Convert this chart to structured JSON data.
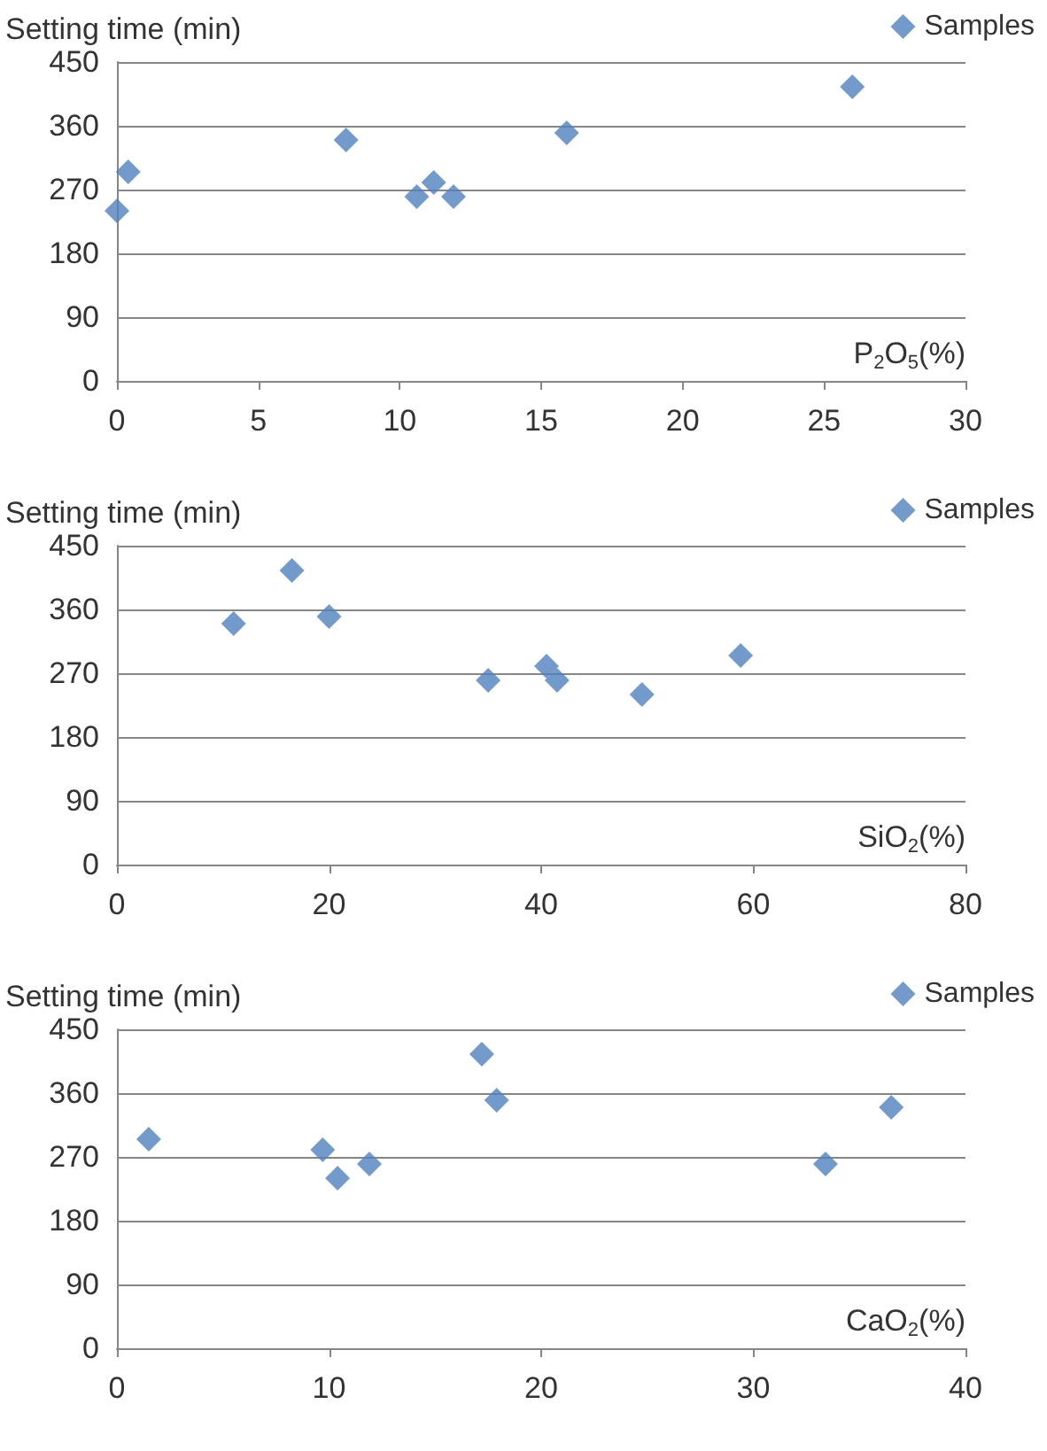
{
  "chart_data": [
    {
      "type": "scatter",
      "ylabel": "Setting time (min)",
      "xlabel": "P$_{2}$O$_{5}$(%)",
      "xlim": [
        0,
        30
      ],
      "xticks": [
        0,
        5,
        10,
        15,
        20,
        25,
        30
      ],
      "ylim": [
        0,
        450
      ],
      "yticks": [
        0,
        90,
        180,
        270,
        360,
        450
      ],
      "grid": "y",
      "legend": "top right",
      "marker": "diamond",
      "series": [
        {
          "name": "Samples",
          "color": "#4f81bd",
          "x": [
            0,
            0.4,
            8.1,
            10.6,
            11.2,
            11.9,
            15.9,
            26
          ],
          "values": [
            240,
            295,
            340,
            260,
            280,
            260,
            350,
            415
          ]
        }
      ]
    },
    {
      "type": "scatter",
      "ylabel": "Setting time (min)",
      "xlabel": "SiO$_{2}$(%)",
      "xlim": [
        0,
        80
      ],
      "xticks": [
        0,
        20,
        40,
        60,
        80
      ],
      "ylim": [
        0,
        450
      ],
      "yticks": [
        0,
        90,
        180,
        270,
        360,
        450
      ],
      "grid": "y",
      "legend": "top right",
      "marker": "diamond",
      "series": [
        {
          "name": "Samples",
          "color": "#4f81bd",
          "x": [
            11,
            16.5,
            20,
            35,
            40.5,
            41.5,
            49.5,
            58.8
          ],
          "values": [
            340,
            415,
            350,
            260,
            280,
            260,
            240,
            295
          ]
        }
      ]
    },
    {
      "type": "scatter",
      "ylabel": "Setting time (min)",
      "xlabel": "CaO$_{2}$(%)",
      "xlim": [
        0,
        40
      ],
      "xticks": [
        0,
        10,
        20,
        30,
        40
      ],
      "ylim": [
        0,
        450
      ],
      "yticks": [
        0,
        90,
        180,
        270,
        360,
        450
      ],
      "grid": "y",
      "legend": "top right",
      "marker": "diamond",
      "series": [
        {
          "name": "Samples",
          "color": "#4f81bd",
          "x": [
            1.5,
            9.7,
            10.4,
            11.9,
            17.2,
            17.9,
            33.4,
            36.5
          ],
          "values": [
            295,
            280,
            240,
            260,
            415,
            350,
            260,
            340
          ]
        }
      ]
    }
  ]
}
